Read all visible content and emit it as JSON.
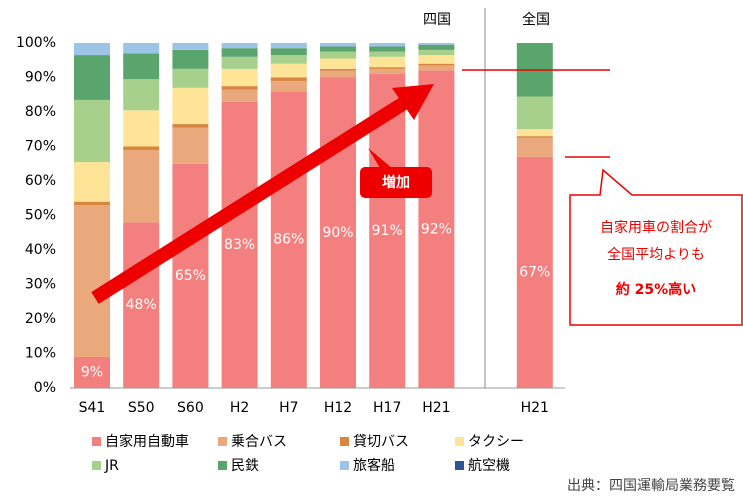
{
  "chart_data": {
    "type": "stacked_bar",
    "categories": [
      "S41",
      "S50",
      "S60",
      "H2",
      "H7",
      "H12",
      "H17",
      "H21",
      null,
      "H21"
    ],
    "series": [
      {
        "name": "自家用自動車",
        "color": "#f47f7f",
        "values": [
          9,
          48,
          65,
          83,
          86,
          90,
          91,
          92,
          null,
          67
        ],
        "value_labels": [
          "9%",
          "48%",
          "65%",
          "83%",
          "86%",
          "90%",
          "91%",
          "92%",
          null,
          "67%"
        ]
      },
      {
        "name": "乗合バス",
        "color": "#eaa97c",
        "values": [
          44,
          21,
          10.5,
          3.5,
          3,
          2,
          1.5,
          1.5,
          null,
          5.5
        ]
      },
      {
        "name": "貸切バス",
        "color": "#d7853f",
        "values": [
          1,
          1,
          1,
          1,
          1,
          0.5,
          0.5,
          0.5,
          null,
          0.5
        ]
      },
      {
        "name": "タクシー",
        "color": "#fde496",
        "values": [
          11.5,
          10.5,
          10.5,
          5,
          4,
          3,
          3,
          2.5,
          null,
          2
        ]
      },
      {
        "name": "JR",
        "color": "#a8d08d",
        "values": [
          18,
          9,
          5.5,
          3.5,
          2.5,
          2,
          1.5,
          1.5,
          null,
          9.5
        ]
      },
      {
        "name": "民鉄",
        "color": "#5aa56e",
        "values": [
          13,
          7.5,
          5.5,
          2.5,
          2,
          1.5,
          1.5,
          1.5,
          null,
          15.5
        ]
      },
      {
        "name": "旅客船",
        "color": "#9dc3e6",
        "values": [
          3.5,
          3,
          2,
          1.5,
          1.5,
          1,
          1,
          0.5,
          null,
          0
        ]
      },
      {
        "name": "航空機",
        "color": "#2f5597",
        "values": [
          0,
          0,
          0,
          0,
          0,
          0,
          0,
          0,
          null,
          0
        ]
      }
    ],
    "ylim": [
      0,
      100
    ],
    "yticks": [
      {
        "value": 0,
        "label": "0%"
      },
      {
        "value": 10,
        "label": "10%"
      },
      {
        "value": 20,
        "label": "20%"
      },
      {
        "value": 30,
        "label": "30%"
      },
      {
        "value": 40,
        "label": "40%"
      },
      {
        "value": 50,
        "label": "50%"
      },
      {
        "value": 60,
        "label": "60%"
      },
      {
        "value": 70,
        "label": "70%"
      },
      {
        "value": 80,
        "label": "80%"
      },
      {
        "value": 90,
        "label": "90%"
      },
      {
        "value": 100,
        "label": "100%"
      }
    ],
    "annotations": {
      "region_shikoku": "四国",
      "region_national": "全国",
      "increase": "増加",
      "callout_line1": "自家用車の割合が",
      "callout_line2": "全国平均よりも",
      "callout_line3": "約 25%高い",
      "source": "出典：四国運輸局業務要覧"
    }
  }
}
